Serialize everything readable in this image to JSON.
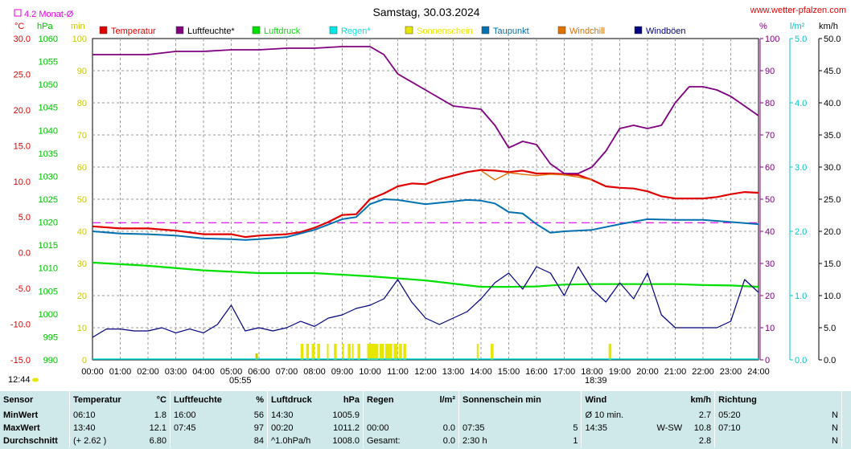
{
  "header": {
    "title": "Samstag, 30.03.2024",
    "site": "www.wetter-pfalzen.com",
    "monthly_avg": "4.2 Monat-Ø",
    "markers": [
      "05:55",
      "12:44",
      "18:39"
    ]
  },
  "units": {
    "temp": "°C",
    "pressure": "hPa",
    "sun": "min",
    "humidity": "%",
    "rain": "l/m²",
    "wind": "km/h"
  },
  "legend": [
    {
      "label": "Temperatur",
      "color": "#e00000"
    },
    {
      "label": "Luftfeuchte*",
      "color": "#800080"
    },
    {
      "label": "Luftdruck",
      "color": "#00e000"
    },
    {
      "label": "Regen*",
      "color": "#00e5e5"
    },
    {
      "label": "Sonnenschein",
      "color": "#e6e600"
    },
    {
      "label": "Taupunkt",
      "color": "#0070b0"
    },
    {
      "label": "Windchill",
      "color": "#e07000"
    },
    {
      "label": "Windböen",
      "color": "#000080"
    }
  ],
  "axes": {
    "temp_ticks": [
      "30.0",
      "25.0",
      "20.0",
      "15.0",
      "10.0",
      "5.0",
      "0.0",
      "-5.0",
      "-10.0",
      "-15.0"
    ],
    "pressure_ticks": [
      "1060",
      "1055",
      "1050",
      "1045",
      "1040",
      "1035",
      "1030",
      "1025",
      "1020",
      "1015",
      "1010",
      "1005",
      "1000",
      "995",
      "990"
    ],
    "sun_ticks": [
      "100",
      "90",
      "80",
      "70",
      "60",
      "50",
      "40",
      "30",
      "20",
      "10",
      "0"
    ],
    "humidity_ticks": [
      "100",
      "90",
      "80",
      "70",
      "60",
      "50",
      "40",
      "30",
      "20",
      "10",
      "0"
    ],
    "rain_ticks": [
      "5.0",
      "4.0",
      "3.0",
      "2.0",
      "1.0",
      "0.0"
    ],
    "wind_ticks": [
      "50.0",
      "45.0",
      "40.0",
      "35.0",
      "30.0",
      "25.0",
      "20.0",
      "15.0",
      "10.0",
      "5.0",
      "0.0"
    ],
    "time_ticks": [
      "00:00",
      "01:00",
      "02:00",
      "03:00",
      "04:00",
      "05:00",
      "06:00",
      "07:00",
      "08:00",
      "09:00",
      "10:00",
      "11:00",
      "12:00",
      "13:00",
      "14:00",
      "15:00",
      "16:00",
      "17:00",
      "18:00",
      "19:00",
      "20:00",
      "21:00",
      "22:00",
      "23:00",
      "24:00"
    ]
  },
  "chart_data": {
    "type": "line",
    "title": "Samstag, 30.03.2024",
    "x_unit": "hour",
    "temp_range": [
      -15,
      30
    ],
    "humidity_range": [
      0,
      100
    ],
    "pressure_range": [
      990,
      1060
    ],
    "wind_range": [
      0,
      50
    ],
    "monthly_avg_temp": 4.2,
    "series": [
      {
        "name": "Temperatur",
        "color": "#e00000",
        "axis": "temp",
        "points": [
          [
            0,
            3.7
          ],
          [
            1,
            3.4
          ],
          [
            2,
            3.4
          ],
          [
            3,
            3.1
          ],
          [
            4,
            2.6
          ],
          [
            5,
            2.6
          ],
          [
            5.5,
            2.2
          ],
          [
            6,
            2.4
          ],
          [
            7,
            2.6
          ],
          [
            7.5,
            2.9
          ],
          [
            8,
            3.5
          ],
          [
            8.5,
            4.3
          ],
          [
            9,
            5.3
          ],
          [
            9.5,
            5.4
          ],
          [
            10,
            7.5
          ],
          [
            10.5,
            8.3
          ],
          [
            11,
            9.3
          ],
          [
            11.5,
            9.7
          ],
          [
            12,
            9.6
          ],
          [
            12.5,
            10.3
          ],
          [
            13,
            10.8
          ],
          [
            13.5,
            11.3
          ],
          [
            14,
            11.6
          ],
          [
            14.5,
            11.5
          ],
          [
            15,
            11.3
          ],
          [
            15.5,
            11.5
          ],
          [
            16,
            11.1
          ],
          [
            16.5,
            11.1
          ],
          [
            17,
            11.0
          ],
          [
            17.5,
            10.9
          ],
          [
            18,
            10.2
          ],
          [
            18.5,
            9.3
          ],
          [
            19,
            9.1
          ],
          [
            19.5,
            9.0
          ],
          [
            20,
            8.6
          ],
          [
            20.5,
            7.9
          ],
          [
            21,
            7.6
          ],
          [
            21.5,
            7.6
          ],
          [
            22,
            7.6
          ],
          [
            22.5,
            7.8
          ],
          [
            23,
            8.2
          ],
          [
            23.5,
            8.5
          ],
          [
            24,
            8.4
          ]
        ]
      },
      {
        "name": "Luftfeuchte*",
        "color": "#800080",
        "axis": "humidity",
        "points": [
          [
            0,
            95
          ],
          [
            1,
            95
          ],
          [
            2,
            95
          ],
          [
            3,
            96
          ],
          [
            4,
            96
          ],
          [
            5,
            96.5
          ],
          [
            6,
            96.5
          ],
          [
            7,
            97
          ],
          [
            8,
            97
          ],
          [
            9,
            97.5
          ],
          [
            10,
            97.5
          ],
          [
            10.5,
            95
          ],
          [
            11,
            89
          ],
          [
            12,
            84
          ],
          [
            13,
            79
          ],
          [
            14,
            78
          ],
          [
            14.5,
            73
          ],
          [
            15,
            66
          ],
          [
            15.5,
            68
          ],
          [
            16,
            67
          ],
          [
            16.5,
            61
          ],
          [
            17,
            58
          ],
          [
            17.5,
            58
          ],
          [
            18,
            60
          ],
          [
            18.5,
            65
          ],
          [
            19,
            72
          ],
          [
            19.5,
            73
          ],
          [
            20,
            72
          ],
          [
            20.5,
            73
          ],
          [
            21,
            80
          ],
          [
            21.5,
            85
          ],
          [
            22,
            85
          ],
          [
            22.5,
            84
          ],
          [
            23,
            82
          ],
          [
            23.5,
            79
          ],
          [
            24,
            76
          ]
        ]
      },
      {
        "name": "Luftdruck",
        "color": "#00e000",
        "axis": "pressure",
        "points": [
          [
            0,
            1011.2
          ],
          [
            2,
            1010.5
          ],
          [
            4,
            1009.5
          ],
          [
            6,
            1008.9
          ],
          [
            8,
            1008.9
          ],
          [
            10,
            1008.2
          ],
          [
            12,
            1007.3
          ],
          [
            13,
            1006.6
          ],
          [
            14,
            1005.9
          ],
          [
            15,
            1005.9
          ],
          [
            16,
            1006.0
          ],
          [
            17,
            1006.4
          ],
          [
            18,
            1006.5
          ],
          [
            19,
            1006.5
          ],
          [
            20,
            1006.5
          ],
          [
            21,
            1006.5
          ],
          [
            22,
            1006.3
          ],
          [
            23,
            1006.2
          ],
          [
            24,
            1005.9
          ]
        ]
      },
      {
        "name": "Taupunkt",
        "color": "#0070b0",
        "axis": "temp",
        "points": [
          [
            0,
            3.0
          ],
          [
            1,
            2.7
          ],
          [
            2,
            2.6
          ],
          [
            3,
            2.4
          ],
          [
            4,
            2.0
          ],
          [
            5,
            1.9
          ],
          [
            5.5,
            1.8
          ],
          [
            6,
            1.9
          ],
          [
            7,
            2.2
          ],
          [
            8,
            3.2
          ],
          [
            9,
            4.7
          ],
          [
            9.5,
            5.0
          ],
          [
            10,
            6.8
          ],
          [
            10.5,
            7.5
          ],
          [
            11,
            7.4
          ],
          [
            12,
            6.8
          ],
          [
            13,
            7.2
          ],
          [
            13.5,
            7.4
          ],
          [
            14,
            7.3
          ],
          [
            14.5,
            6.9
          ],
          [
            15,
            5.7
          ],
          [
            15.5,
            5.5
          ],
          [
            16,
            4.0
          ],
          [
            16.5,
            2.8
          ],
          [
            17,
            3.0
          ],
          [
            18,
            3.2
          ],
          [
            19,
            4.0
          ],
          [
            20,
            4.7
          ],
          [
            21,
            4.6
          ],
          [
            22,
            4.6
          ],
          [
            23,
            4.3
          ],
          [
            24,
            4.0
          ]
        ]
      },
      {
        "name": "Windchill",
        "color": "#e07000",
        "axis": "temp",
        "points": [
          [
            14,
            11.5
          ],
          [
            14.5,
            10.2
          ],
          [
            15,
            11.2
          ],
          [
            15.5,
            11.0
          ],
          [
            16,
            10.8
          ],
          [
            16.5,
            11.0
          ],
          [
            17,
            10.9
          ],
          [
            17.5,
            10.6
          ],
          [
            18,
            10.2
          ]
        ]
      },
      {
        "name": "Windböen",
        "color": "#000080",
        "axis": "wind",
        "points": [
          [
            0,
            3.5
          ],
          [
            0.5,
            4.8
          ],
          [
            1,
            4.8
          ],
          [
            1.5,
            4.5
          ],
          [
            2,
            4.5
          ],
          [
            2.5,
            5.0
          ],
          [
            3,
            4.2
          ],
          [
            3.5,
            4.8
          ],
          [
            4,
            4.2
          ],
          [
            4.5,
            5.5
          ],
          [
            5,
            8.5
          ],
          [
            5.5,
            4.5
          ],
          [
            6,
            5.0
          ],
          [
            6.5,
            4.5
          ],
          [
            7,
            5.0
          ],
          [
            7.5,
            6.0
          ],
          [
            8,
            5.2
          ],
          [
            8.5,
            6.5
          ],
          [
            9,
            7.0
          ],
          [
            9.5,
            8.0
          ],
          [
            10,
            8.5
          ],
          [
            10.5,
            9.5
          ],
          [
            11,
            12.5
          ],
          [
            11.5,
            9.0
          ],
          [
            12,
            6.5
          ],
          [
            12.5,
            5.5
          ],
          [
            13,
            6.5
          ],
          [
            13.5,
            7.5
          ],
          [
            14,
            9.5
          ],
          [
            14.5,
            12.0
          ],
          [
            15,
            13.5
          ],
          [
            15.5,
            11.0
          ],
          [
            16,
            14.5
          ],
          [
            16.5,
            13.5
          ],
          [
            17,
            10.0
          ],
          [
            17.5,
            14.5
          ],
          [
            18,
            11.0
          ],
          [
            18.5,
            9.0
          ],
          [
            19,
            12.0
          ],
          [
            19.5,
            9.5
          ],
          [
            20,
            13.5
          ],
          [
            20.5,
            7.0
          ],
          [
            21,
            5.0
          ],
          [
            21.5,
            5.0
          ],
          [
            22,
            5.0
          ],
          [
            22.5,
            5.0
          ],
          [
            23,
            6.0
          ],
          [
            23.5,
            12.5
          ],
          [
            24,
            10.5
          ]
        ]
      }
    ],
    "sunshine_intervals": [
      [
        7.5,
        7.6
      ],
      [
        7.7,
        7.8
      ],
      [
        7.9,
        8.0
      ],
      [
        8.1,
        8.2
      ],
      [
        8.45,
        8.5
      ],
      [
        8.7,
        8.8
      ],
      [
        9.0,
        9.05
      ],
      [
        9.2,
        9.3
      ],
      [
        9.35,
        9.4
      ],
      [
        9.55,
        9.65
      ],
      [
        9.9,
        10.0
      ],
      [
        10.0,
        10.3
      ],
      [
        10.35,
        10.5
      ],
      [
        10.55,
        10.8
      ],
      [
        10.85,
        11.0
      ],
      [
        11.05,
        11.15
      ],
      [
        11.2,
        11.3
      ],
      [
        13.85,
        13.9
      ],
      [
        14.35,
        14.45
      ],
      [
        18.6,
        18.7
      ]
    ]
  },
  "stats": {
    "headers": [
      "Sensor",
      "Temperatur",
      "°C",
      "Luftfeuchte",
      "%",
      "Luftdruck",
      "hPa",
      "Regen",
      "l/m²",
      "Sonnenschein min",
      "Wind",
      "km/h",
      "Richtung"
    ],
    "rows": [
      {
        "label": "MinWert",
        "temp_time": "06:10",
        "temp_val": "1.8",
        "hum_time": "16:00",
        "hum_val": "56",
        "pres_time": "14:30",
        "pres_val": "1005.9",
        "rain_time": "",
        "rain_val": "",
        "sun_time": "",
        "sun_val": "",
        "wind_time": "Ø 10 min.",
        "wind_dir": "",
        "wind_val": "2.7",
        "dir_time": "05:20",
        "dir_val": "N"
      },
      {
        "label": "MaxWert",
        "temp_time": "13:40",
        "temp_val": "12.1",
        "hum_time": "07:45",
        "hum_val": "97",
        "pres_time": "00:20",
        "pres_val": "1011.2",
        "rain_time": "00:00",
        "rain_val": "0.0",
        "sun_time": "07:35",
        "sun_val": "5",
        "wind_time": "14:35",
        "wind_dir": "W-SW",
        "wind_val": "10.8",
        "dir_time": "07:10",
        "dir_val": "N"
      },
      {
        "label": "Durchschnitt",
        "temp_time": "(+ 2.62 )",
        "temp_val": "6.80",
        "hum_time": "",
        "hum_val": "84",
        "pres_time": "^1.0hPa/h",
        "pres_val": "1008.0",
        "rain_time": "Gesamt:",
        "rain_val": "0.0",
        "sun_time": "2:30 h",
        "sun_val": "1",
        "wind_time": "",
        "wind_dir": "",
        "wind_val": "2.8",
        "dir_time": "",
        "dir_val": "N"
      }
    ]
  }
}
